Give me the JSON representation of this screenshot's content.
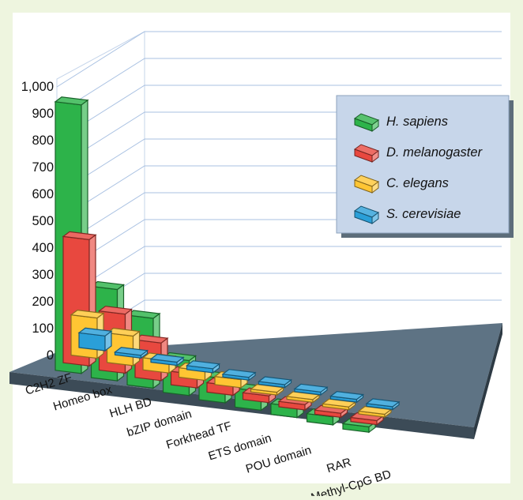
{
  "chart_data": {
    "type": "bar",
    "subtype": "3d-grouped",
    "title": "",
    "xlabel": "",
    "ylabel": "",
    "ylim": [
      0,
      1000
    ],
    "yticks": [
      "0",
      "100",
      "200",
      "300",
      "400",
      "500",
      "600",
      "700",
      "800",
      "900",
      "1,000"
    ],
    "grid": true,
    "legend_position": "top-right",
    "categories": [
      "C2H2 ZF",
      "Homeo box",
      "HLH BD",
      "bZIP domain",
      "Forkhead TF",
      "ETS domain",
      "POU domain",
      "RAR",
      "Methyl-CpG BD"
    ],
    "series": [
      {
        "name": "H. sapiens",
        "color": "#2db34a",
        "values": [
          1000,
          340,
          260,
          130,
          90,
          70,
          40,
          30,
          20
        ]
      },
      {
        "name": "D. melanogaster",
        "color": "#e8483f",
        "values": [
          470,
          220,
          140,
          50,
          35,
          25,
          20,
          15,
          15
        ]
      },
      {
        "name": "C. elegans",
        "color": "#ffc533",
        "values": [
          150,
          110,
          45,
          35,
          30,
          10,
          10,
          10,
          10
        ]
      },
      {
        "name": "S. cerevisiae",
        "color": "#2a9fd8",
        "values": [
          55,
          10,
          12,
          15,
          5,
          5,
          5,
          5,
          5
        ]
      }
    ]
  }
}
